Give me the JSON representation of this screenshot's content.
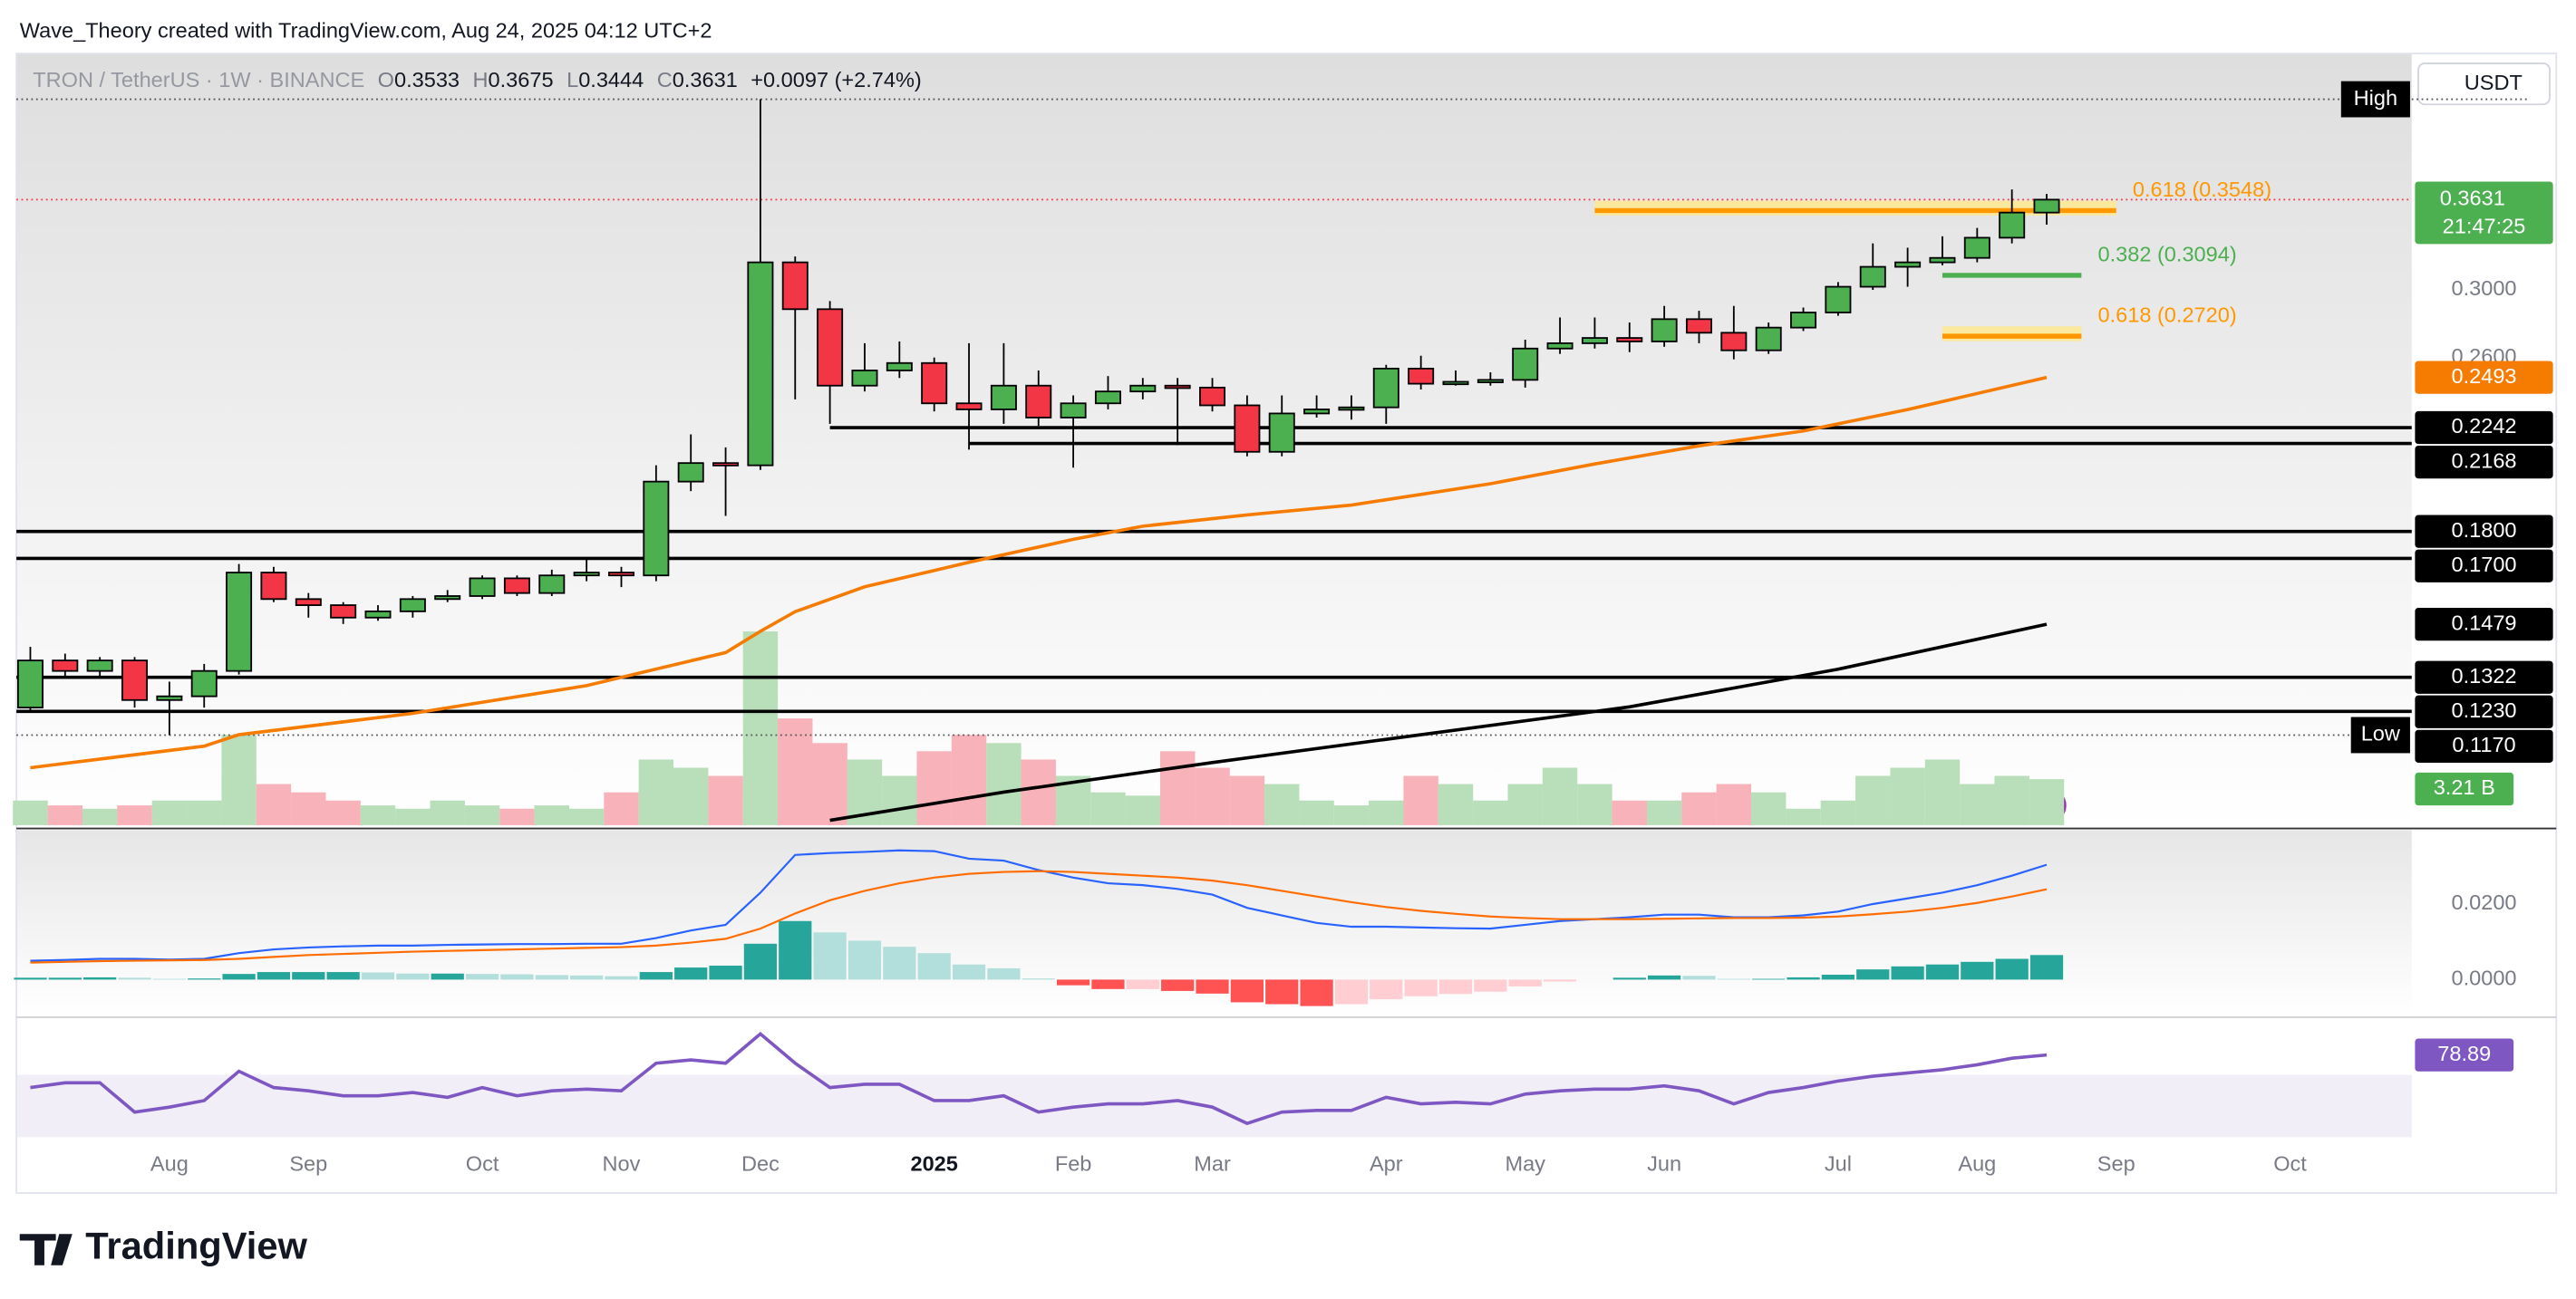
{
  "header": {
    "credit": "Wave_Theory created with TradingView.com, Aug 24, 2025 04:12 UTC+2",
    "symbol": "TRON / TetherUS · 1W · BINANCE",
    "ohlc_letters": [
      "O",
      "H",
      "L",
      "C"
    ],
    "change": "+0.0097 (+2.74%)"
  },
  "footer": {
    "brand": "TradingView"
  },
  "chart_data": {
    "type": "candlestick",
    "log_scale": true,
    "currency": "USDT",
    "xlim": [
      -0.4,
      68.5
    ],
    "ylim": [
      0.0967,
      0.4946
    ],
    "xticks": [
      {
        "value": 4,
        "label": "Aug"
      },
      {
        "value": 8,
        "label": "Sep"
      },
      {
        "value": 13,
        "label": "Oct"
      },
      {
        "value": 17,
        "label": "Nov"
      },
      {
        "value": 21,
        "label": "Dec"
      },
      {
        "value": 26,
        "label": "2025"
      },
      {
        "value": 30,
        "label": "Feb"
      },
      {
        "value": 34,
        "label": "Mar"
      },
      {
        "value": 39,
        "label": "Apr"
      },
      {
        "value": 43,
        "label": "May"
      },
      {
        "value": 47,
        "label": "Jun"
      },
      {
        "value": 52,
        "label": "Jul"
      },
      {
        "value": 56,
        "label": "Aug"
      },
      {
        "value": 60,
        "label": "Sep"
      },
      {
        "value": 65,
        "label": "Oct"
      }
    ],
    "yticks": [
      {
        "value": 0.3,
        "label": "0.3000"
      },
      {
        "value": 0.26,
        "label": "0.2600"
      }
    ],
    "up_color": "#4caf50",
    "down_color": "#f23645",
    "open": [
      0.124,
      0.137,
      0.134,
      0.137,
      0.126,
      0.127,
      0.134,
      0.165,
      0.156,
      0.154,
      0.15,
      0.152,
      0.156,
      0.157,
      0.163,
      0.158,
      0.164,
      0.165,
      0.164,
      0.2,
      0.208,
      0.207,
      0.318,
      0.288,
      0.245,
      0.253,
      0.257,
      0.236,
      0.233,
      0.245,
      0.229,
      0.236,
      0.242,
      0.245,
      0.244,
      0.235,
      0.213,
      0.231,
      0.233,
      0.234,
      0.254,
      0.246,
      0.247,
      0.248,
      0.265,
      0.268,
      0.271,
      0.269,
      0.282,
      0.274,
      0.264,
      0.277,
      0.286,
      0.302,
      0.315,
      0.318,
      0.321,
      0.335,
      0.3533
    ],
    "high": [
      0.141,
      0.139,
      0.138,
      0.138,
      0.131,
      0.136,
      0.168,
      0.167,
      0.158,
      0.155,
      0.154,
      0.157,
      0.159,
      0.164,
      0.164,
      0.166,
      0.17,
      0.167,
      0.207,
      0.221,
      0.215,
      0.449,
      0.322,
      0.293,
      0.268,
      0.269,
      0.26,
      0.268,
      0.268,
      0.253,
      0.24,
      0.25,
      0.249,
      0.249,
      0.249,
      0.24,
      0.24,
      0.24,
      0.24,
      0.256,
      0.261,
      0.253,
      0.252,
      0.27,
      0.283,
      0.283,
      0.28,
      0.29,
      0.287,
      0.29,
      0.28,
      0.289,
      0.305,
      0.331,
      0.328,
      0.336,
      0.342,
      0.371,
      0.3675
    ],
    "low": [
      0.123,
      0.132,
      0.132,
      0.124,
      0.117,
      0.124,
      0.133,
      0.155,
      0.15,
      0.148,
      0.149,
      0.15,
      0.155,
      0.156,
      0.157,
      0.157,
      0.162,
      0.16,
      0.162,
      0.196,
      0.186,
      0.205,
      0.238,
      0.226,
      0.242,
      0.249,
      0.232,
      0.214,
      0.226,
      0.225,
      0.206,
      0.233,
      0.238,
      0.216,
      0.232,
      0.211,
      0.211,
      0.229,
      0.228,
      0.226,
      0.243,
      0.245,
      0.245,
      0.244,
      0.262,
      0.265,
      0.263,
      0.266,
      0.268,
      0.259,
      0.262,
      0.275,
      0.284,
      0.3,
      0.302,
      0.316,
      0.318,
      0.331,
      0.3444
    ],
    "close": [
      0.137,
      0.134,
      0.137,
      0.126,
      0.127,
      0.134,
      0.165,
      0.156,
      0.154,
      0.15,
      0.152,
      0.156,
      0.157,
      0.163,
      0.158,
      0.164,
      0.165,
      0.164,
      0.2,
      0.208,
      0.207,
      0.318,
      0.288,
      0.245,
      0.253,
      0.257,
      0.236,
      0.233,
      0.245,
      0.229,
      0.236,
      0.242,
      0.245,
      0.244,
      0.235,
      0.213,
      0.231,
      0.233,
      0.234,
      0.254,
      0.246,
      0.247,
      0.248,
      0.265,
      0.268,
      0.271,
      0.269,
      0.282,
      0.274,
      0.264,
      0.277,
      0.286,
      0.302,
      0.315,
      0.318,
      0.321,
      0.335,
      0.3533,
      0.3631
    ],
    "last_price": {
      "value": 0.3631,
      "label": "0.3631",
      "countdown": "21:47:25",
      "color": "#4caf50"
    },
    "high_marker": {
      "text": "High"
    },
    "low_marker": {
      "value": 0.117,
      "label": "0.1170",
      "text": "Low"
    },
    "moving_averages": [
      {
        "color": "#f57c00",
        "x": [
          0,
          5,
          6,
          11,
          16,
          19,
          20,
          21,
          22,
          24,
          27,
          30,
          32,
          35,
          38,
          42,
          45,
          48,
          51,
          54,
          58
        ],
        "values": [
          0.1092,
          0.1143,
          0.1171,
          0.1225,
          0.1299,
          0.1369,
          0.1393,
          0.1457,
          0.1519,
          0.1601,
          0.1686,
          0.177,
          0.182,
          0.1864,
          0.1903,
          0.1991,
          0.2076,
          0.2157,
          0.2226,
          0.2329,
          0.2493
        ],
        "last_label": "0.2493"
      },
      {
        "color": "#000000",
        "x": [
          23,
          28,
          34,
          40,
          46,
          52,
          58
        ],
        "values": [
          0.0977,
          0.1037,
          0.1104,
          0.1171,
          0.1242,
          0.1345,
          0.1479
        ],
        "last_label": "0.1479"
      }
    ],
    "levels": [
      {
        "value": 0.2242,
        "label": "0.2242",
        "x_start": 23
      },
      {
        "value": 0.2168,
        "label": "0.2168",
        "x_start": 27
      },
      {
        "value": 0.18,
        "label": "0.1800"
      },
      {
        "value": 0.17,
        "label": "0.1700"
      },
      {
        "value": 0.1322,
        "label": "0.1322"
      },
      {
        "value": 0.123,
        "label": "0.1230"
      }
    ],
    "fib": [
      {
        "text": "0.618 (0.3548)",
        "value": 0.3548,
        "color": "#ff9800",
        "band": "#ffe98a",
        "x": [
          45,
          60
        ]
      },
      {
        "text": "0.382 (0.3094)",
        "value": 0.3094,
        "color": "#4caf50",
        "x": [
          55,
          59
        ]
      },
      {
        "text": "0.618 (0.2720)",
        "value": 0.272,
        "color": "#ff9800",
        "band": "#ffe98a",
        "x": [
          55,
          59
        ]
      }
    ],
    "volume": {
      "lim": [
        0,
        14
      ],
      "values": [
        1.72,
        1.38,
        1.15,
        1.38,
        1.72,
        1.72,
        6.3,
        2.87,
        2.29,
        1.72,
        1.38,
        1.15,
        1.72,
        1.38,
        1.15,
        1.38,
        1.15,
        2.29,
        4.58,
        4.01,
        3.44,
        13.52,
        7.45,
        5.73,
        4.58,
        3.44,
        5.16,
        6.3,
        5.73,
        4.58,
        3.44,
        2.29,
        2.06,
        5.16,
        4.01,
        3.44,
        2.87,
        1.72,
        1.38,
        1.72,
        3.44,
        2.87,
        1.72,
        2.87,
        4.01,
        2.87,
        1.72,
        1.72,
        2.29,
        2.87,
        2.29,
        1.15,
        1.72,
        3.44,
        4.01,
        4.58,
        2.87,
        3.44,
        3.21
      ],
      "last_label": "3.21 B",
      "up_color": "#b9dfba",
      "down_color": "#f7b3b9"
    },
    "macd": {
      "ylim": [
        -0.0091,
        0.0387
      ],
      "yticks": [
        {
          "value": 0.02,
          "label": "0.0200"
        },
        {
          "value": 0,
          "label": "0.0000"
        }
      ],
      "macd_color": "#2962ff",
      "signal_color": "#ff6d00",
      "macd": [
        0.005,
        0.0052,
        0.0055,
        0.0055,
        0.0053,
        0.0055,
        0.007,
        0.008,
        0.0085,
        0.0088,
        0.009,
        0.009,
        0.0092,
        0.0093,
        0.0094,
        0.0094,
        0.0095,
        0.0095,
        0.011,
        0.013,
        0.0145,
        0.023,
        0.033,
        0.0335,
        0.0338,
        0.0342,
        0.034,
        0.032,
        0.0315,
        0.029,
        0.027,
        0.0255,
        0.025,
        0.024,
        0.0225,
        0.019,
        0.017,
        0.015,
        0.014,
        0.014,
        0.0138,
        0.0136,
        0.0135,
        0.0145,
        0.0155,
        0.016,
        0.0165,
        0.0172,
        0.0172,
        0.0165,
        0.0165,
        0.017,
        0.018,
        0.02,
        0.0215,
        0.023,
        0.025,
        0.0275,
        0.0304
      ],
      "signal": [
        0.0045,
        0.0047,
        0.0049,
        0.005,
        0.0051,
        0.0052,
        0.0055,
        0.006,
        0.0065,
        0.0068,
        0.0071,
        0.0074,
        0.0076,
        0.0078,
        0.008,
        0.0082,
        0.0084,
        0.0086,
        0.009,
        0.0098,
        0.0108,
        0.0135,
        0.0175,
        0.021,
        0.0235,
        0.0255,
        0.027,
        0.028,
        0.0285,
        0.0287,
        0.0285,
        0.028,
        0.0275,
        0.027,
        0.0262,
        0.025,
        0.0235,
        0.022,
        0.0205,
        0.0192,
        0.0182,
        0.0174,
        0.0167,
        0.0163,
        0.016,
        0.016,
        0.016,
        0.0161,
        0.0162,
        0.0163,
        0.0163,
        0.0164,
        0.0167,
        0.0173,
        0.018,
        0.019,
        0.0203,
        0.022,
        0.0239
      ],
      "histogram": [
        0.0005,
        0.0005,
        0.0006,
        0.0005,
        0.0002,
        0.0003,
        0.0015,
        0.002,
        0.002,
        0.002,
        0.0019,
        0.0016,
        0.0016,
        0.0015,
        0.0014,
        0.0012,
        0.0011,
        0.0009,
        0.002,
        0.0032,
        0.0037,
        0.0095,
        0.0155,
        0.0125,
        0.0103,
        0.0087,
        0.007,
        0.004,
        0.003,
        0.0003,
        -0.0015,
        -0.0025,
        -0.0025,
        -0.003,
        -0.0037,
        -0.006,
        -0.0065,
        -0.007,
        -0.0065,
        -0.0052,
        -0.0044,
        -0.0038,
        -0.0032,
        -0.0018,
        -0.0005,
        0.0,
        0.0005,
        0.0011,
        0.001,
        0.0002,
        0.0002,
        0.0006,
        0.0013,
        0.0027,
        0.0035,
        0.004,
        0.0047,
        0.0055,
        0.0065
      ]
    },
    "rsi": {
      "ylim": [
        31,
        98
      ],
      "color": "#7e57c2",
      "values": [
        59.9,
        62.7,
        62.7,
        45.6,
        48.5,
        52.3,
        69.4,
        59.9,
        58.0,
        55.1,
        55.1,
        57.0,
        54.2,
        59.9,
        55.1,
        58.0,
        59.0,
        58.0,
        74.1,
        76.0,
        74.1,
        91.2,
        74.1,
        59.9,
        61.8,
        61.8,
        52.3,
        52.3,
        55.1,
        45.6,
        48.5,
        50.4,
        50.4,
        52.3,
        48.5,
        39.0,
        45.6,
        46.6,
        46.6,
        54.2,
        50.4,
        51.3,
        50.4,
        56.1,
        58.0,
        59.0,
        59.0,
        60.9,
        58.0,
        50.4,
        57.0,
        59.9,
        63.7,
        66.5,
        68.4,
        70.3,
        73.2,
        77.0,
        78.89
      ]
    }
  }
}
